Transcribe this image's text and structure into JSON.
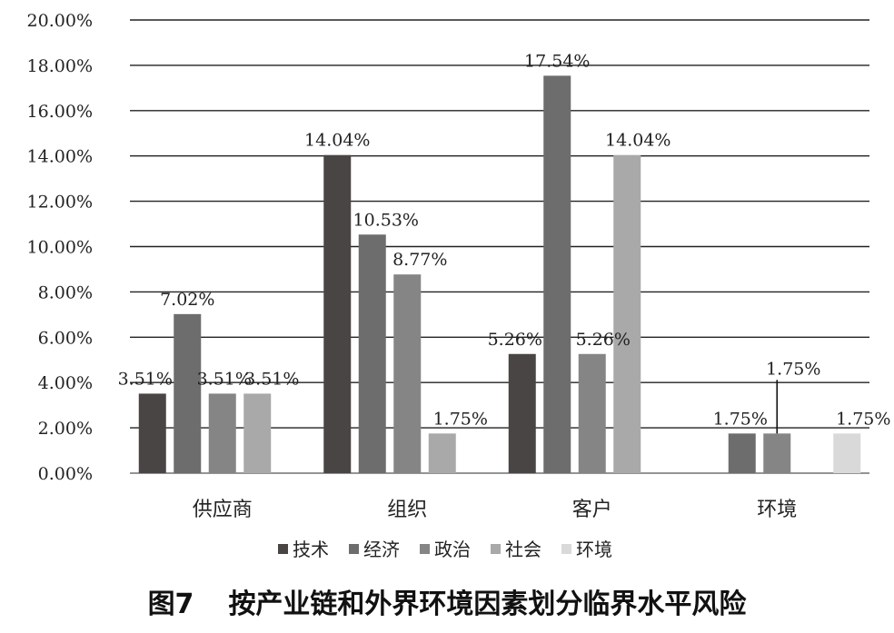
{
  "caption": {
    "figure_number": "图7",
    "title": "按产业链和外界环境因素划分临界水平风险"
  },
  "chart_data": {
    "type": "bar",
    "title": "",
    "xlabel": "",
    "ylabel": "",
    "ylim": [
      0,
      20
    ],
    "yticks": [
      "0.00%",
      "2.00%",
      "4.00%",
      "6.00%",
      "8.00%",
      "10.00%",
      "12.00%",
      "14.00%",
      "16.00%",
      "18.00%",
      "20.00%"
    ],
    "grid": "horizontal",
    "legend_position": "bottom",
    "categories": [
      "供应商",
      "组织",
      "客户",
      "环境"
    ],
    "series": [
      {
        "name": "技术",
        "color": "#4a4545",
        "values": [
          3.51,
          14.04,
          5.26,
          null
        ],
        "labels": [
          "3.51%",
          "14.04%",
          "5.26%",
          ""
        ]
      },
      {
        "name": "经济",
        "color": "#6d6d6d",
        "values": [
          7.02,
          10.53,
          17.54,
          1.75
        ],
        "labels": [
          "7.02%",
          "10.53%",
          "17.54%",
          "1.75%"
        ]
      },
      {
        "name": "政治",
        "color": "#858585",
        "values": [
          3.51,
          8.77,
          5.26,
          1.75
        ],
        "labels": [
          "3.51%",
          "8.77%",
          "5.26%",
          "1.75%"
        ]
      },
      {
        "name": "社会",
        "color": "#a9a9a9",
        "values": [
          3.51,
          1.75,
          14.04,
          null
        ],
        "labels": [
          "3.51%",
          "1.75%",
          "14.04%",
          ""
        ]
      },
      {
        "name": "环境",
        "color": "#d9d9d9",
        "values": [
          null,
          null,
          null,
          1.75
        ],
        "labels": [
          "",
          "",
          "",
          "1.75%"
        ]
      }
    ]
  }
}
